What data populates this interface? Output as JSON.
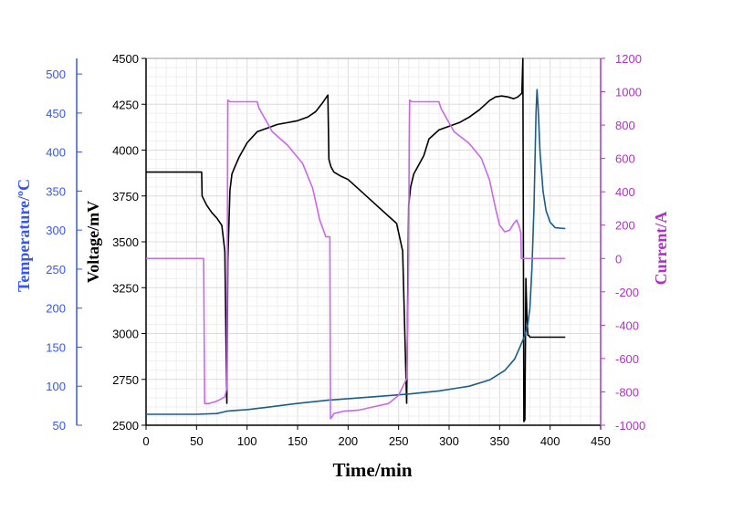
{
  "chart_data": {
    "type": "line",
    "x_axis": {
      "label": "Time/min",
      "range": [
        0,
        450
      ],
      "ticks": [
        0,
        50,
        100,
        150,
        200,
        250,
        300,
        350,
        400,
        450
      ]
    },
    "y_axes": {
      "voltage": {
        "label": "Voltage/mV",
        "range": [
          2500,
          4500
        ],
        "ticks": [
          2500,
          2750,
          3000,
          3250,
          3500,
          3750,
          4000,
          4250,
          4500
        ],
        "color": "#000000"
      },
      "temperature": {
        "label": "Temperature/ºC",
        "range": [
          50,
          520
        ],
        "ticks": [
          50,
          100,
          150,
          200,
          250,
          300,
          350,
          400,
          450,
          500
        ],
        "color": "#3355ff"
      },
      "current": {
        "label": "Current/A",
        "range": [
          -1000,
          1200
        ],
        "ticks": [
          -1000,
          -800,
          -600,
          -400,
          -200,
          0,
          200,
          400,
          600,
          800,
          1000,
          1200
        ],
        "color": "#b030c8"
      }
    },
    "grid": true,
    "series": [
      {
        "name": "Voltage",
        "axis": "voltage",
        "color": "#000000",
        "x": [
          0,
          55,
          55.5,
          60,
          65,
          70,
          75,
          78,
          80,
          81,
          83,
          85,
          88,
          92,
          100,
          110,
          120,
          130,
          140,
          150,
          160,
          168,
          175,
          180,
          181,
          183,
          186,
          192,
          200,
          210,
          220,
          230,
          240,
          248,
          254,
          258,
          260,
          262,
          265,
          270,
          275,
          280,
          290,
          300,
          310,
          320,
          330,
          340,
          346,
          352,
          358,
          364,
          368,
          372,
          373,
          374,
          375,
          376,
          377,
          378,
          379,
          380,
          381,
          382,
          385,
          400,
          415
        ],
        "y": [
          3880,
          3880,
          3750,
          3700,
          3660,
          3630,
          3590,
          3450,
          2620,
          3400,
          3780,
          3870,
          3910,
          3960,
          4040,
          4100,
          4120,
          4140,
          4150,
          4160,
          4180,
          4210,
          4260,
          4300,
          3950,
          3910,
          3880,
          3860,
          3840,
          3790,
          3740,
          3690,
          3640,
          3600,
          3450,
          2620,
          3700,
          3800,
          3870,
          3920,
          3970,
          4060,
          4110,
          4130,
          4150,
          4180,
          4220,
          4270,
          4290,
          4295,
          4290,
          4280,
          4290,
          4310,
          4500,
          2520,
          2530,
          3300,
          3100,
          2990,
          2990,
          2980,
          2980,
          2980,
          2980,
          2980,
          2980
        ]
      },
      {
        "name": "Temperature",
        "axis": "temperature",
        "color": "#1a5c8c",
        "x": [
          0,
          50,
          70,
          80,
          90,
          100,
          120,
          150,
          180,
          200,
          230,
          260,
          290,
          320,
          340,
          355,
          365,
          370,
          375,
          378,
          380,
          382,
          384,
          386,
          387,
          388,
          390,
          393,
          396,
          400,
          405,
          415
        ],
        "y": [
          64,
          64,
          65,
          68,
          69,
          70,
          73,
          78,
          82,
          84,
          87,
          90,
          94,
          100,
          108,
          120,
          135,
          150,
          165,
          180,
          200,
          250,
          330,
          450,
          480,
          460,
          400,
          350,
          325,
          310,
          303,
          302
        ]
      },
      {
        "name": "Current",
        "axis": "current",
        "color": "#cc66ee",
        "x": [
          0,
          57,
          57.5,
          58,
          62,
          68,
          72,
          78,
          80,
          80.5,
          81,
          83,
          110,
          112,
          125,
          140,
          155,
          165,
          172,
          178,
          182,
          182.5,
          183,
          186,
          196,
          210,
          225,
          240,
          250,
          258,
          260,
          260.5,
          261,
          263,
          290,
          292,
          305,
          320,
          332,
          340,
          346,
          350,
          355,
          360,
          364,
          367,
          370,
          371,
          371.5,
          372,
          385,
          415
        ],
        "y": [
          0,
          0,
          -400,
          -870,
          -870,
          -860,
          -850,
          -830,
          -780,
          100,
          950,
          940,
          940,
          900,
          760,
          680,
          570,
          420,
          230,
          130,
          130,
          -960,
          -960,
          -930,
          -915,
          -910,
          -890,
          -870,
          -820,
          -720,
          0,
          700,
          950,
          940,
          940,
          900,
          760,
          690,
          600,
          470,
          300,
          200,
          160,
          170,
          210,
          230,
          180,
          150,
          0,
          0,
          0,
          0
        ]
      }
    ]
  }
}
